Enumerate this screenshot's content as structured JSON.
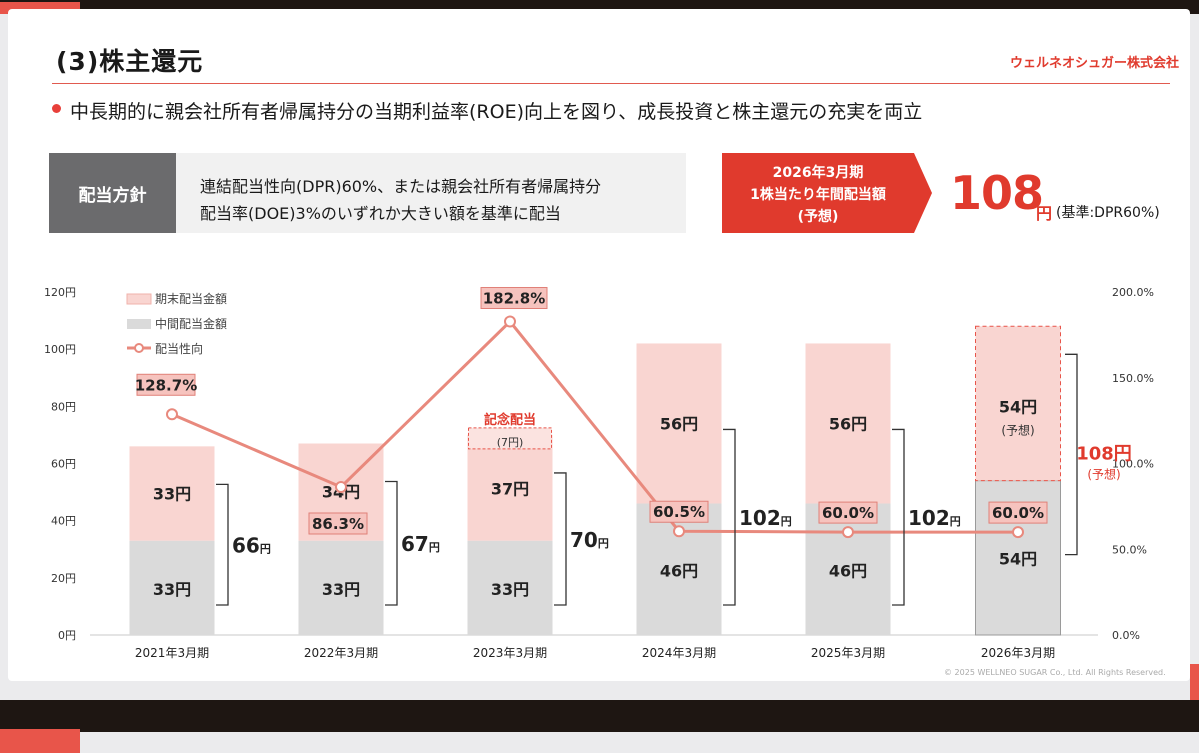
{
  "header": {
    "title": "(3)株主還元",
    "company": "ウェルネオシュガー株式会社",
    "headline": "中長期的に親会社所有者帰属持分の当期利益率(ROE)向上を図り、成長投資と株主還元の充実を両立"
  },
  "policy": {
    "label": "配当方針",
    "line1": "連結配当性向(DPR)60%、または親会社所有者帰属持分",
    "line2": "配当率(DOE)3%のいずれか大きい額を基準に配当"
  },
  "forecast": {
    "line1": "2026年3月期",
    "line2": "1株当たり年間配当額",
    "line3": "(予想)",
    "value": "108",
    "unit": "円",
    "basis": "(基準:DPR60%)"
  },
  "colors": {
    "accent": "#e8554a",
    "year_end": "#f9d5d1",
    "year_end_border": "#f0b2ab",
    "interim": "#dadada",
    "payout_line": "#e8897d",
    "label_box": "#f6c3be"
  },
  "chart_data": {
    "type": "bar",
    "stacked": true,
    "categories": [
      "2021年3月期",
      "2022年3月期",
      "2023年3月期",
      "2024年3月期",
      "2025年3月期",
      "2026年3月期"
    ],
    "series": [
      {
        "name": "中間配当金額",
        "values": [
          33,
          33,
          33,
          46,
          46,
          54
        ],
        "labels": [
          "33円",
          "33円",
          "33円",
          "46円",
          "46円",
          "54円"
        ]
      },
      {
        "name": "期末配当金額",
        "values": [
          33,
          34,
          37,
          56,
          56,
          54
        ],
        "labels": [
          "33円",
          "34円",
          "37円",
          "56円",
          "56円",
          "54円"
        ]
      },
      {
        "name": "配当性向",
        "axis": "right",
        "values": [
          128.7,
          86.3,
          182.8,
          60.5,
          60.0,
          60.0
        ],
        "labels": [
          "128.7%",
          "86.3%",
          "182.8%",
          "60.5%",
          "60.0%",
          "60.0%"
        ]
      }
    ],
    "commemorative": {
      "index": 2,
      "value": 7,
      "title": "記念配当",
      "label": "(7円)"
    },
    "totals": [
      {
        "value": "66",
        "unit": "円"
      },
      {
        "value": "67",
        "unit": "円"
      },
      {
        "value": "70",
        "unit": "円"
      },
      {
        "value": "102",
        "unit": "円"
      },
      {
        "value": "102",
        "unit": "円"
      },
      {
        "value": "108",
        "unit": "円",
        "note": "(予想)"
      }
    ],
    "forecast_note": "(予想)",
    "y_left": {
      "ticks": [
        "0円",
        "20円",
        "40円",
        "60円",
        "80円",
        "100円",
        "120円"
      ],
      "range": [
        0,
        120
      ]
    },
    "y_right": {
      "ticks": [
        "0.0%",
        "50.0%",
        "100.0%",
        "150.0%",
        "200.0%"
      ],
      "range": [
        0,
        200
      ]
    },
    "legend": [
      "期末配当金額",
      "中間配当金額",
      "配当性向"
    ],
    "legend_position": "top-left"
  },
  "footer": {
    "copyright": "© 2025 WELLNEO SUGAR Co., Ltd. All Rights Reserved."
  }
}
